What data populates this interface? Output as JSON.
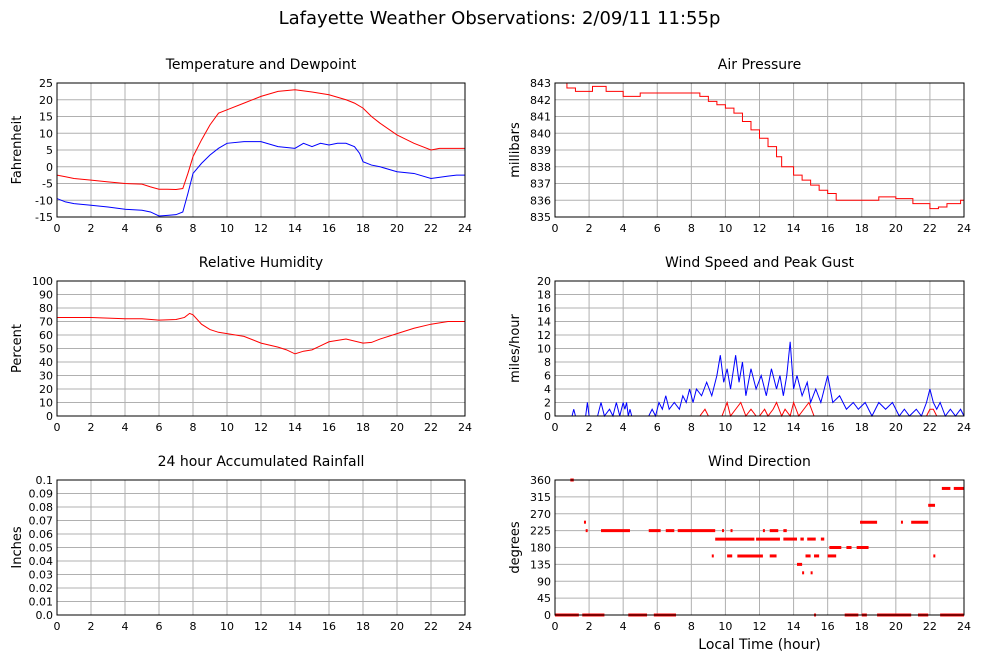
{
  "page": {
    "title": "Lafayette Weather Observations: 2/09/11 11:55p",
    "shared_xlabel": "Local Time (hour)"
  },
  "colors": {
    "red": "#ff0000",
    "blue": "#0000ff",
    "grid": "#b0b0b0",
    "frame": "#000000"
  },
  "chart_data": [
    {
      "id": "temp",
      "type": "line",
      "title": "Temperature and Dewpoint",
      "xlabel": "",
      "ylabel": "Fahrenheit",
      "xlim": [
        0,
        24
      ],
      "ylim": [
        -15,
        25
      ],
      "xticks": [
        0,
        2,
        4,
        6,
        8,
        10,
        12,
        14,
        16,
        18,
        20,
        22,
        24
      ],
      "yticks": [
        -15,
        -10,
        -5,
        0,
        5,
        10,
        15,
        20,
        25
      ],
      "grid": true,
      "series": [
        {
          "color": "#ff0000",
          "x": [
            0,
            0.5,
            1,
            2,
            3,
            4,
            5,
            5.5,
            6,
            6.5,
            7,
            7.4,
            7.7,
            8,
            8.5,
            9,
            9.5,
            10,
            11,
            12,
            13,
            14,
            15,
            16,
            17,
            17.5,
            18,
            18.5,
            19,
            20,
            21,
            22,
            22.5,
            23,
            24
          ],
          "y": [
            -2.5,
            -3,
            -3.5,
            -4,
            -4.5,
            -5,
            -5.2,
            -6,
            -6.7,
            -6.7,
            -6.8,
            -6.5,
            -2,
            3,
            8,
            12.5,
            16,
            17,
            19,
            21,
            22.5,
            23,
            22.3,
            21.5,
            20,
            19,
            17.5,
            15,
            13,
            9.5,
            7,
            5,
            5.5,
            5.5,
            5.5
          ]
        },
        {
          "color": "#0000ff",
          "x": [
            0,
            0.5,
            1,
            2,
            3,
            4,
            5,
            5.5,
            6,
            6.5,
            7,
            7.4,
            7.7,
            8,
            8.5,
            9,
            9.5,
            10,
            11,
            12,
            13,
            14,
            14.5,
            15,
            15.5,
            16,
            16.5,
            17,
            17.5,
            17.8,
            18,
            18.5,
            19,
            20,
            21,
            22,
            23,
            23.5,
            24
          ],
          "y": [
            -9.5,
            -10.5,
            -11,
            -11.5,
            -12,
            -12.7,
            -13,
            -13.5,
            -14.7,
            -14.5,
            -14.3,
            -13.5,
            -8,
            -2,
            1,
            3.5,
            5.5,
            7,
            7.5,
            7.5,
            6,
            5.5,
            7,
            6,
            7,
            6.5,
            7,
            7,
            6,
            4,
            1.5,
            0.5,
            0,
            -1.5,
            -2,
            -3.5,
            -2.8,
            -2.5,
            -2.5
          ]
        }
      ]
    },
    {
      "id": "pressure",
      "type": "line",
      "title": "Air Pressure",
      "xlabel": "",
      "ylabel": "millibars",
      "xlim": [
        0,
        24
      ],
      "ylim": [
        835,
        843
      ],
      "xticks": [
        0,
        2,
        4,
        6,
        8,
        10,
        12,
        14,
        16,
        18,
        20,
        22,
        24
      ],
      "yticks": [
        835,
        836,
        837,
        838,
        839,
        840,
        841,
        842,
        843
      ],
      "grid": true,
      "series": [
        {
          "color": "#ff0000",
          "step": true,
          "x": [
            0,
            0.7,
            1.2,
            2.2,
            3,
            4,
            5,
            7,
            8,
            8.5,
            9,
            9.5,
            10,
            10.5,
            11,
            11.5,
            12,
            12.5,
            13,
            13.3,
            14,
            14.5,
            15,
            15.5,
            16,
            16.5,
            17,
            18,
            19,
            20,
            21,
            22,
            22.5,
            23,
            23.8,
            24
          ],
          "y": [
            843,
            842.7,
            842.5,
            842.8,
            842.5,
            842.2,
            842.4,
            842.4,
            842.4,
            842.2,
            841.9,
            841.7,
            841.5,
            841.2,
            840.7,
            840.2,
            839.7,
            839.2,
            838.6,
            838,
            837.5,
            837.2,
            836.9,
            836.6,
            836.4,
            836,
            836,
            836,
            836.2,
            836.1,
            835.8,
            835.5,
            835.6,
            835.8,
            836,
            836.1
          ]
        }
      ]
    },
    {
      "id": "humidity",
      "type": "line",
      "title": "Relative Humidity",
      "xlabel": "",
      "ylabel": "Percent",
      "xlim": [
        0,
        24
      ],
      "ylim": [
        0,
        100
      ],
      "xticks": [
        0,
        2,
        4,
        6,
        8,
        10,
        12,
        14,
        16,
        18,
        20,
        22,
        24
      ],
      "yticks": [
        0,
        10,
        20,
        30,
        40,
        50,
        60,
        70,
        80,
        90,
        100
      ],
      "grid": true,
      "series": [
        {
          "color": "#ff0000",
          "x": [
            0,
            1,
            2,
            3,
            4,
            5,
            6,
            7,
            7.5,
            7.8,
            8,
            8.5,
            9,
            9.5,
            10,
            11,
            12,
            13,
            13.5,
            14,
            14.5,
            15,
            15.5,
            16,
            17,
            18,
            18.5,
            19,
            20,
            21,
            22,
            23,
            24
          ],
          "y": [
            73,
            73,
            73,
            72.5,
            72,
            72,
            71,
            71.5,
            73,
            76,
            75,
            68,
            64,
            62,
            61,
            59,
            54,
            51,
            49,
            46,
            48,
            49,
            52,
            55,
            57,
            54,
            54.5,
            57,
            61,
            65,
            68,
            70,
            70
          ]
        }
      ]
    },
    {
      "id": "wind",
      "type": "line",
      "title": "Wind Speed and Peak Gust",
      "xlabel": "",
      "ylabel": "miles/hour",
      "xlim": [
        0,
        24
      ],
      "ylim": [
        0,
        20
      ],
      "xticks": [
        0,
        2,
        4,
        6,
        8,
        10,
        12,
        14,
        16,
        18,
        20,
        22,
        24
      ],
      "yticks": [
        0,
        2,
        4,
        6,
        8,
        10,
        12,
        14,
        16,
        18,
        20
      ],
      "grid": true,
      "series": [
        {
          "color": "#0000ff",
          "x": [
            0,
            1,
            1.1,
            1.2,
            1.8,
            1.9,
            2,
            2.5,
            2.7,
            2.9,
            3.2,
            3.4,
            3.6,
            3.8,
            4,
            4.1,
            4.2,
            4.3,
            4.4,
            4.5,
            5,
            5.5,
            5.7,
            5.9,
            6.1,
            6.3,
            6.5,
            6.7,
            7,
            7.3,
            7.5,
            7.7,
            7.9,
            8.1,
            8.3,
            8.6,
            8.9,
            9.2,
            9.5,
            9.7,
            9.9,
            10.1,
            10.3,
            10.6,
            10.8,
            11,
            11.2,
            11.5,
            11.8,
            12.1,
            12.4,
            12.7,
            13,
            13.2,
            13.4,
            13.6,
            13.8,
            14,
            14.2,
            14.5,
            14.8,
            15,
            15.3,
            15.6,
            16,
            16.3,
            16.7,
            17.1,
            17.5,
            17.8,
            18.2,
            18.6,
            19,
            19.4,
            19.8,
            20.2,
            20.5,
            20.8,
            21.2,
            21.5,
            21.8,
            22,
            22.2,
            22.4,
            22.6,
            22.9,
            23.2,
            23.5,
            23.8,
            24
          ],
          "y": [
            0,
            0,
            1,
            0,
            0,
            2,
            0,
            0,
            2,
            0,
            1,
            0,
            2,
            0,
            2,
            1,
            2,
            0,
            1,
            0,
            0,
            0,
            1,
            0,
            2,
            1,
            3,
            1,
            2,
            1,
            3,
            2,
            4,
            2,
            4,
            3,
            5,
            3,
            6,
            9,
            5,
            7,
            4,
            9,
            5,
            8,
            3,
            7,
            4,
            6,
            3,
            7,
            4,
            6,
            3,
            6,
            11,
            4,
            6,
            3,
            5,
            2,
            4,
            2,
            6,
            2,
            3,
            1,
            2,
            1,
            2,
            0,
            2,
            1,
            2,
            0,
            1,
            0,
            1,
            0,
            2,
            4,
            2,
            1,
            2,
            0,
            1,
            0,
            1,
            0
          ]
        },
        {
          "color": "#ff0000",
          "x": [
            0,
            8.5,
            8.8,
            9,
            9.2,
            9.4,
            9.8,
            10.1,
            10.3,
            10.6,
            10.9,
            11.2,
            11.5,
            11.8,
            12,
            12.3,
            12.5,
            12.8,
            13,
            13.3,
            13.5,
            13.8,
            14,
            14.3,
            14.6,
            14.9,
            15.2,
            21.8,
            22,
            22.2,
            22.4,
            24
          ],
          "y": [
            0,
            0,
            1,
            0,
            0,
            0,
            0,
            2,
            0,
            1,
            2,
            0,
            1,
            0,
            0,
            1,
            0,
            1,
            2,
            0,
            1,
            0,
            2,
            0,
            1,
            2,
            0,
            0,
            1,
            1,
            0,
            0
          ]
        }
      ]
    },
    {
      "id": "rain",
      "type": "line",
      "title": "24 hour Accumulated Rainfall",
      "xlabel": "",
      "ylabel": "Inches",
      "xlim": [
        0,
        24
      ],
      "ylim": [
        0,
        0.1
      ],
      "xticks": [
        0,
        2,
        4,
        6,
        8,
        10,
        12,
        14,
        16,
        18,
        20,
        22,
        24
      ],
      "yticks": [
        0.0,
        0.01,
        0.02,
        0.03,
        0.04,
        0.05,
        0.06,
        0.07,
        0.08,
        0.09,
        0.1
      ],
      "ytick_labels": [
        "0.0",
        "0.01",
        "0.02",
        "0.03",
        "0.04",
        "0.05",
        "0.06",
        "0.07",
        "0.08",
        "0.09",
        "0.1"
      ],
      "grid": true,
      "series": [
        {
          "color": "#ff0000",
          "x": [
            0,
            24
          ],
          "y": [
            0,
            0
          ]
        }
      ]
    },
    {
      "id": "direction",
      "type": "scatter",
      "title": "Wind Direction",
      "xlabel": "Local Time (hour)",
      "ylabel": "degrees",
      "xlim": [
        0,
        24
      ],
      "ylim": [
        0,
        360
      ],
      "xticks": [
        0,
        2,
        4,
        6,
        8,
        10,
        12,
        14,
        16,
        18,
        20,
        22,
        24
      ],
      "yticks": [
        0,
        45,
        90,
        135,
        180,
        225,
        270,
        315,
        360
      ],
      "grid": true,
      "series": [
        {
          "color": "#ff0000",
          "segments": [
            [
              0,
              1.4,
              0
            ],
            [
              1.6,
              2.9,
              0
            ],
            [
              4.3,
              5.4,
              0
            ],
            [
              5.8,
              7.1,
              0
            ],
            [
              15.2,
              15.3,
              0
            ],
            [
              17,
              17.8,
              0
            ],
            [
              18,
              18.3,
              0
            ],
            [
              18.9,
              20.9,
              0
            ],
            [
              21.3,
              21.9,
              0
            ],
            [
              22.6,
              24,
              0
            ],
            [
              0.9,
              1.1,
              360
            ],
            [
              22.7,
              23.2,
              337.5
            ],
            [
              23.4,
              24,
              337.5
            ],
            [
              21.9,
              22.3,
              292.5
            ],
            [
              1.7,
              1.8,
              247.5
            ],
            [
              17.9,
              18.9,
              247.5
            ],
            [
              20.3,
              20.4,
              247.5
            ],
            [
              20.9,
              21.9,
              247.5
            ],
            [
              1.8,
              1.9,
              225
            ],
            [
              2.7,
              4.4,
              225
            ],
            [
              5.5,
              6.2,
              225
            ],
            [
              6.5,
              7,
              225
            ],
            [
              7.2,
              9.4,
              225
            ],
            [
              9.8,
              9.9,
              225
            ],
            [
              10.3,
              10.4,
              225
            ],
            [
              12.2,
              12.3,
              225
            ],
            [
              12.6,
              13.1,
              225
            ],
            [
              13.4,
              13.6,
              225
            ],
            [
              9.4,
              11.7,
              202.5
            ],
            [
              11.8,
              13.2,
              202.5
            ],
            [
              13.4,
              14.2,
              202.5
            ],
            [
              14.4,
              14.6,
              202.5
            ],
            [
              14.8,
              15.3,
              202.5
            ],
            [
              15.6,
              15.8,
              202.5
            ],
            [
              16.1,
              16.8,
              180
            ],
            [
              17.1,
              17.4,
              180
            ],
            [
              17.7,
              18.4,
              180
            ],
            [
              10.1,
              10.4,
              157.5
            ],
            [
              10.7,
              12.2,
              157.5
            ],
            [
              12.6,
              13,
              157.5
            ],
            [
              14.7,
              15,
              157.5
            ],
            [
              15.2,
              15.5,
              157.5
            ],
            [
              16,
              16.5,
              157.5
            ],
            [
              9.2,
              9.3,
              157.5
            ],
            [
              22.2,
              22.3,
              157.5
            ],
            [
              14.2,
              14.5,
              135
            ],
            [
              14.5,
              14.6,
              112.5
            ],
            [
              15,
              15.1,
              112.5
            ]
          ]
        }
      ]
    }
  ]
}
